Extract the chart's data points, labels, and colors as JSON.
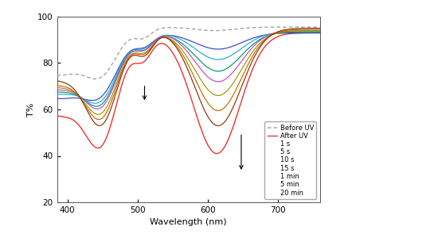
{
  "title": "",
  "xlabel": "Wavelength (nm)",
  "ylabel": "T%",
  "xlim": [
    385,
    760
  ],
  "ylim": [
    20,
    100
  ],
  "yticks": [
    20,
    40,
    60,
    80,
    100
  ],
  "xticks": [
    400,
    500,
    600,
    700
  ],
  "fig_width": 5.5,
  "fig_height": 3.0,
  "fig_dpi": 100,
  "background_color": "#ffffff",
  "border_color": "#cccccc",
  "before_uv_color": "#aaaaaa",
  "after_uv_color": "#ee3333",
  "curve_colors": [
    "#3344cc",
    "#22aacc",
    "#009966",
    "#cc44cc",
    "#999900",
    "#cc6600",
    "#883300"
  ]
}
